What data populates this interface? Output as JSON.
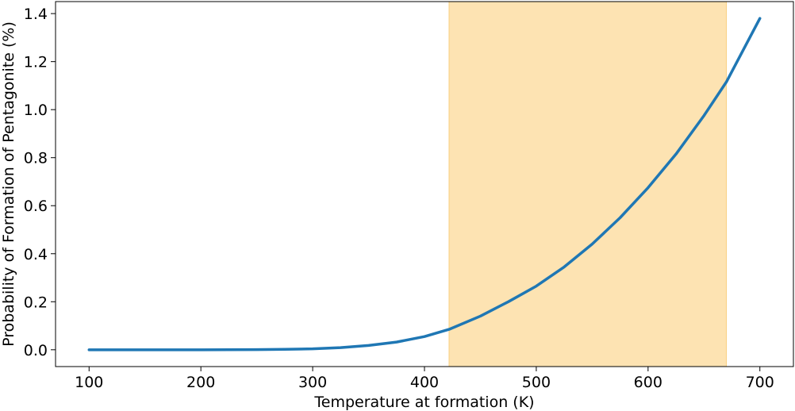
{
  "chart_data": {
    "type": "line",
    "title": "",
    "xlabel": "Temperature at formation (K)",
    "ylabel": "Probability of Formation of Pentagonite (%)",
    "xlim": [
      70,
      730
    ],
    "ylim": [
      -0.07,
      1.45
    ],
    "xticks": [
      100,
      200,
      300,
      400,
      500,
      600,
      700
    ],
    "yticks": [
      0.0,
      0.2,
      0.4,
      0.6,
      0.8,
      1.0,
      1.2,
      1.4
    ],
    "xtick_labels": [
      "100",
      "200",
      "300",
      "400",
      "500",
      "600",
      "700"
    ],
    "ytick_labels": [
      "0.0",
      "0.2",
      "0.4",
      "0.6",
      "0.8",
      "1.0",
      "1.2",
      "1.4"
    ],
    "grid": false,
    "shaded_region": {
      "x_start": 422,
      "x_end": 670,
      "color": "#fde3b2"
    },
    "series": [
      {
        "color": "#1f77b4",
        "x": [
          100,
          150,
          200,
          250,
          275,
          300,
          325,
          350,
          375,
          400,
          422,
          450,
          475,
          500,
          525,
          550,
          575,
          600,
          625,
          650,
          670,
          700
        ],
        "values": [
          0.0,
          0.0,
          0.0,
          0.0005,
          0.002,
          0.004,
          0.009,
          0.018,
          0.032,
          0.055,
          0.085,
          0.14,
          0.2,
          0.265,
          0.345,
          0.44,
          0.55,
          0.675,
          0.815,
          0.975,
          1.115,
          1.38
        ]
      }
    ]
  }
}
